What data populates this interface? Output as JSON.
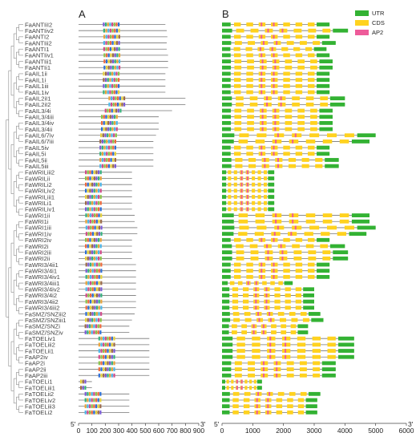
{
  "panel_a_label": "A",
  "panel_b_label": "B",
  "end_5prime": "5'",
  "end_3prime": "3'",
  "axis_a_ticks": [
    "0",
    "100",
    "200",
    "300",
    "400",
    "500",
    "600",
    "700",
    "800",
    "900"
  ],
  "axis_b_ticks": [
    "0",
    "1000",
    "2000",
    "3000",
    "4000",
    "5000",
    "6000"
  ],
  "legend": [
    {
      "label": "UTR",
      "color": "#33b233"
    },
    {
      "label": "CDS",
      "color": "#ffd21f"
    },
    {
      "label": "AP2",
      "color": "#ee5b9a"
    }
  ],
  "genes": [
    {
      "name": "FaANTIiI2",
      "a_len": 650,
      "b_len": 3500
    },
    {
      "name": "FaANTIiv2",
      "a_len": 660,
      "b_len": 4100
    },
    {
      "name": "FaANTI2",
      "a_len": 665,
      "b_len": 3500
    },
    {
      "name": "FaANTIii2",
      "a_len": 660,
      "b_len": 3700
    },
    {
      "name": "FaANTI1",
      "a_len": 660,
      "b_len": 3400
    },
    {
      "name": "FaANTIiv1",
      "a_len": 670,
      "b_len": 3500
    },
    {
      "name": "FaANTIii1",
      "a_len": 670,
      "b_len": 3600
    },
    {
      "name": "FaANTIi1",
      "a_len": 670,
      "b_len": 3600
    },
    {
      "name": "FaAIL1ii",
      "a_len": 650,
      "b_len": 3500
    },
    {
      "name": "FaAIL1i",
      "a_len": 650,
      "b_len": 3500
    },
    {
      "name": "FaAIL1iii",
      "a_len": 650,
      "b_len": 3500
    },
    {
      "name": "FaAIL1iv",
      "a_len": 650,
      "b_len": 3500
    },
    {
      "name": "FaAIL2iI1",
      "a_len": 800,
      "b_len": 4000
    },
    {
      "name": "FaAIL2iI2",
      "a_len": 800,
      "b_len": 4000
    },
    {
      "name": "FaAIL3/4i",
      "a_len": 700,
      "b_len": 3600
    },
    {
      "name": "FaAIL3/4iii",
      "a_len": 600,
      "b_len": 3600
    },
    {
      "name": "FaAIL3/4iv",
      "a_len": 600,
      "b_len": 3600
    },
    {
      "name": "FaAIL3/4ii",
      "a_len": 600,
      "b_len": 3600
    },
    {
      "name": "FaAIL6/7iv",
      "a_len": 580,
      "b_len": 5000
    },
    {
      "name": "FaAIL6/7iii",
      "a_len": 560,
      "b_len": 4800
    },
    {
      "name": "FaAIL5iv",
      "a_len": 560,
      "b_len": 3500
    },
    {
      "name": "FaAIL5i",
      "a_len": 560,
      "b_len": 3500
    },
    {
      "name": "FaAIL5ii",
      "a_len": 560,
      "b_len": 3800
    },
    {
      "name": "FaAIL5iii",
      "a_len": 560,
      "b_len": 3800
    },
    {
      "name": "FaWRILiii2",
      "a_len": 400,
      "b_len": 1700
    },
    {
      "name": "FaWRILii",
      "a_len": 400,
      "b_len": 1700
    },
    {
      "name": "FaWRILi2",
      "a_len": 400,
      "b_len": 1700
    },
    {
      "name": "FaWRILiv2",
      "a_len": 400,
      "b_len": 1700
    },
    {
      "name": "FaWRILiii1",
      "a_len": 400,
      "b_len": 1700
    },
    {
      "name": "FaWRILi1",
      "a_len": 400,
      "b_len": 1700
    },
    {
      "name": "FaWRILiv1",
      "a_len": 400,
      "b_len": 1700
    },
    {
      "name": "FaWRI1ii",
      "a_len": 420,
      "b_len": 4800
    },
    {
      "name": "FaWRI1i",
      "a_len": 420,
      "b_len": 4800
    },
    {
      "name": "FaWRI1iii",
      "a_len": 440,
      "b_len": 5000
    },
    {
      "name": "FaWRI1iv",
      "a_len": 440,
      "b_len": 4700
    },
    {
      "name": "FaWRI2iv",
      "a_len": 400,
      "b_len": 3500
    },
    {
      "name": "FaWRI2i",
      "a_len": 400,
      "b_len": 4000
    },
    {
      "name": "FaWRI2iii",
      "a_len": 400,
      "b_len": 4100
    },
    {
      "name": "FaWRI2ii",
      "a_len": 400,
      "b_len": 4100
    },
    {
      "name": "FaWRI3/4ii1",
      "a_len": 430,
      "b_len": 3500
    },
    {
      "name": "FaWRI3/4i1",
      "a_len": 430,
      "b_len": 3500
    },
    {
      "name": "FaWRI3/4iv1",
      "a_len": 430,
      "b_len": 3500
    },
    {
      "name": "FaWRI3/4iii1",
      "a_len": 430,
      "b_len": 2300
    },
    {
      "name": "FaWRI3/4iv2",
      "a_len": 430,
      "b_len": 3000
    },
    {
      "name": "FaWRI3/4i2",
      "a_len": 430,
      "b_len": 3000
    },
    {
      "name": "FaWRI3/4ii2",
      "a_len": 430,
      "b_len": 3000
    },
    {
      "name": "FaWRI3/4iii2",
      "a_len": 430,
      "b_len": 3000
    },
    {
      "name": "FaSMZ/SNZiii2",
      "a_len": 420,
      "b_len": 3200
    },
    {
      "name": "FaSMZ/SNZiii1",
      "a_len": 400,
      "b_len": 3300
    },
    {
      "name": "FaSMZ/SNZi",
      "a_len": 380,
      "b_len": 2800
    },
    {
      "name": "FaSMZ/SNZiv",
      "a_len": 380,
      "b_len": 2800
    },
    {
      "name": "FaTOELiv1",
      "a_len": 530,
      "b_len": 4300
    },
    {
      "name": "FaTOELiii2",
      "a_len": 530,
      "b_len": 4300
    },
    {
      "name": "FaTOELii1",
      "a_len": 530,
      "b_len": 4300
    },
    {
      "name": "FaAP2iv",
      "a_len": 530,
      "b_len": 4300
    },
    {
      "name": "FaAP2i",
      "a_len": 530,
      "b_len": 3700
    },
    {
      "name": "FaAP2ii",
      "a_len": 530,
      "b_len": 3700
    },
    {
      "name": "FaAP2iii",
      "a_len": 530,
      "b_len": 3700
    },
    {
      "name": "FaTOELi1",
      "a_len": 100,
      "b_len": 1300
    },
    {
      "name": "FaTOELiii1",
      "a_len": 100,
      "b_len": 1300
    },
    {
      "name": "FaTOELii2",
      "a_len": 380,
      "b_len": 3200
    },
    {
      "name": "FaTOELiv2",
      "a_len": 380,
      "b_len": 3100
    },
    {
      "name": "FaTOELiii3",
      "a_len": 380,
      "b_len": 3100
    },
    {
      "name": "FaTOELi2",
      "a_len": 380,
      "b_len": 3100
    }
  ]
}
